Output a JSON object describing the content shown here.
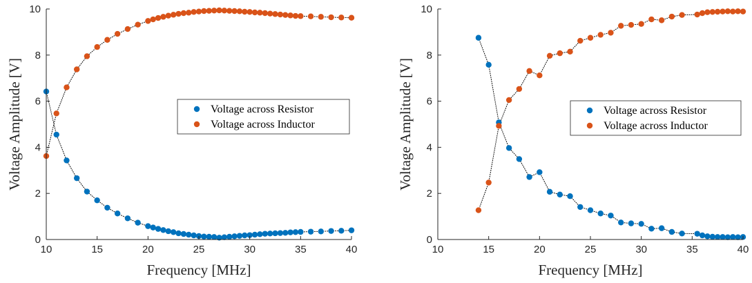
{
  "colors": {
    "resistor": "#0072BD",
    "inductor": "#D95319",
    "fit": "#000000",
    "axis": "#262626"
  },
  "chart_data": [
    {
      "type": "scatter",
      "title": "",
      "xlabel": "Frequency [MHz]",
      "ylabel": "Voltage Amplitude [V]",
      "xlim": [
        10,
        40
      ],
      "ylim": [
        0,
        10
      ],
      "xticks": [
        "10",
        "15",
        "20",
        "25",
        "30",
        "35",
        "40"
      ],
      "yticks": [
        "0",
        "2",
        "4",
        "6",
        "8",
        "10"
      ],
      "grid": false,
      "legend_position": "right",
      "series": [
        {
          "name": "Voltage across Resistor",
          "x": [
            10,
            11,
            12,
            13,
            14,
            15,
            16,
            17,
            18,
            19,
            20,
            20.5,
            21,
            21.5,
            22,
            22.5,
            23,
            23.5,
            24,
            24.5,
            25,
            25.5,
            26,
            26.5,
            27,
            27.5,
            28,
            28.5,
            29,
            29.5,
            30,
            30.5,
            31,
            31.5,
            32,
            32.5,
            33,
            33.5,
            34,
            34.5,
            35,
            36,
            37,
            38,
            39,
            40
          ],
          "y": [
            6.42,
            4.55,
            3.43,
            2.66,
            2.08,
            1.7,
            1.38,
            1.13,
            0.92,
            0.73,
            0.58,
            0.52,
            0.46,
            0.41,
            0.36,
            0.32,
            0.27,
            0.24,
            0.21,
            0.18,
            0.15,
            0.13,
            0.12,
            0.11,
            0.08,
            0.1,
            0.12,
            0.14,
            0.16,
            0.18,
            0.19,
            0.21,
            0.23,
            0.25,
            0.26,
            0.27,
            0.28,
            0.29,
            0.31,
            0.32,
            0.33,
            0.34,
            0.35,
            0.37,
            0.38,
            0.4
          ]
        },
        {
          "name": "Voltage across Inductor",
          "x": [
            10,
            11,
            12,
            13,
            14,
            15,
            16,
            17,
            18,
            19,
            20,
            20.5,
            21,
            21.5,
            22,
            22.5,
            23,
            23.5,
            24,
            24.5,
            25,
            25.5,
            26,
            26.5,
            27,
            27.5,
            28,
            28.5,
            29,
            29.5,
            30,
            30.5,
            31,
            31.5,
            32,
            32.5,
            33,
            33.5,
            34,
            34.5,
            35,
            36,
            37,
            38,
            39,
            40
          ],
          "y": [
            3.62,
            5.47,
            6.6,
            7.38,
            7.95,
            8.35,
            8.66,
            8.92,
            9.13,
            9.32,
            9.48,
            9.55,
            9.61,
            9.66,
            9.71,
            9.75,
            9.79,
            9.82,
            9.84,
            9.87,
            9.89,
            9.91,
            9.92,
            9.93,
            9.94,
            9.93,
            9.92,
            9.91,
            9.9,
            9.88,
            9.87,
            9.85,
            9.84,
            9.82,
            9.8,
            9.78,
            9.76,
            9.74,
            9.72,
            9.7,
            9.69,
            9.68,
            9.66,
            9.64,
            9.63,
            9.62
          ]
        }
      ]
    },
    {
      "type": "scatter",
      "title": "",
      "xlabel": "Frequency [MHz]",
      "ylabel": "Voltage Amplitude [V]",
      "xlim": [
        10,
        40
      ],
      "ylim": [
        0,
        10
      ],
      "xticks": [
        "10",
        "15",
        "20",
        "25",
        "30",
        "35",
        "40"
      ],
      "yticks": [
        "0",
        "2",
        "4",
        "6",
        "8",
        "10"
      ],
      "grid": false,
      "legend_position": "right",
      "series": [
        {
          "name": "Voltage across Resistor",
          "x": [
            14,
            15,
            16,
            17,
            18,
            19,
            20,
            21,
            22,
            23,
            24,
            25,
            26,
            27,
            28,
            29,
            30,
            31,
            32,
            33,
            34,
            35.5,
            36,
            36.5,
            37,
            37.5,
            38,
            38.5,
            39,
            39.5,
            40
          ],
          "y": [
            8.75,
            7.58,
            5.08,
            3.97,
            3.49,
            2.71,
            2.92,
            2.07,
            1.95,
            1.88,
            1.41,
            1.27,
            1.13,
            1.04,
            0.74,
            0.7,
            0.68,
            0.47,
            0.49,
            0.33,
            0.26,
            0.25,
            0.18,
            0.14,
            0.12,
            0.11,
            0.11,
            0.1,
            0.11,
            0.1,
            0.11
          ]
        },
        {
          "name": "Voltage across Inductor",
          "x": [
            14,
            15,
            16,
            17,
            18,
            19,
            20,
            21,
            22,
            23,
            24,
            25,
            26,
            27,
            28,
            29,
            30,
            31,
            32,
            33,
            34,
            35.5,
            36,
            36.5,
            37,
            37.5,
            38,
            38.5,
            39,
            39.5,
            40
          ],
          "y": [
            1.27,
            2.47,
            4.93,
            6.05,
            6.53,
            7.31,
            7.12,
            7.97,
            8.08,
            8.15,
            8.62,
            8.75,
            8.88,
            8.97,
            9.27,
            9.31,
            9.35,
            9.55,
            9.51,
            9.67,
            9.74,
            9.76,
            9.82,
            9.86,
            9.87,
            9.88,
            9.89,
            9.9,
            9.89,
            9.9,
            9.89
          ]
        }
      ]
    }
  ]
}
